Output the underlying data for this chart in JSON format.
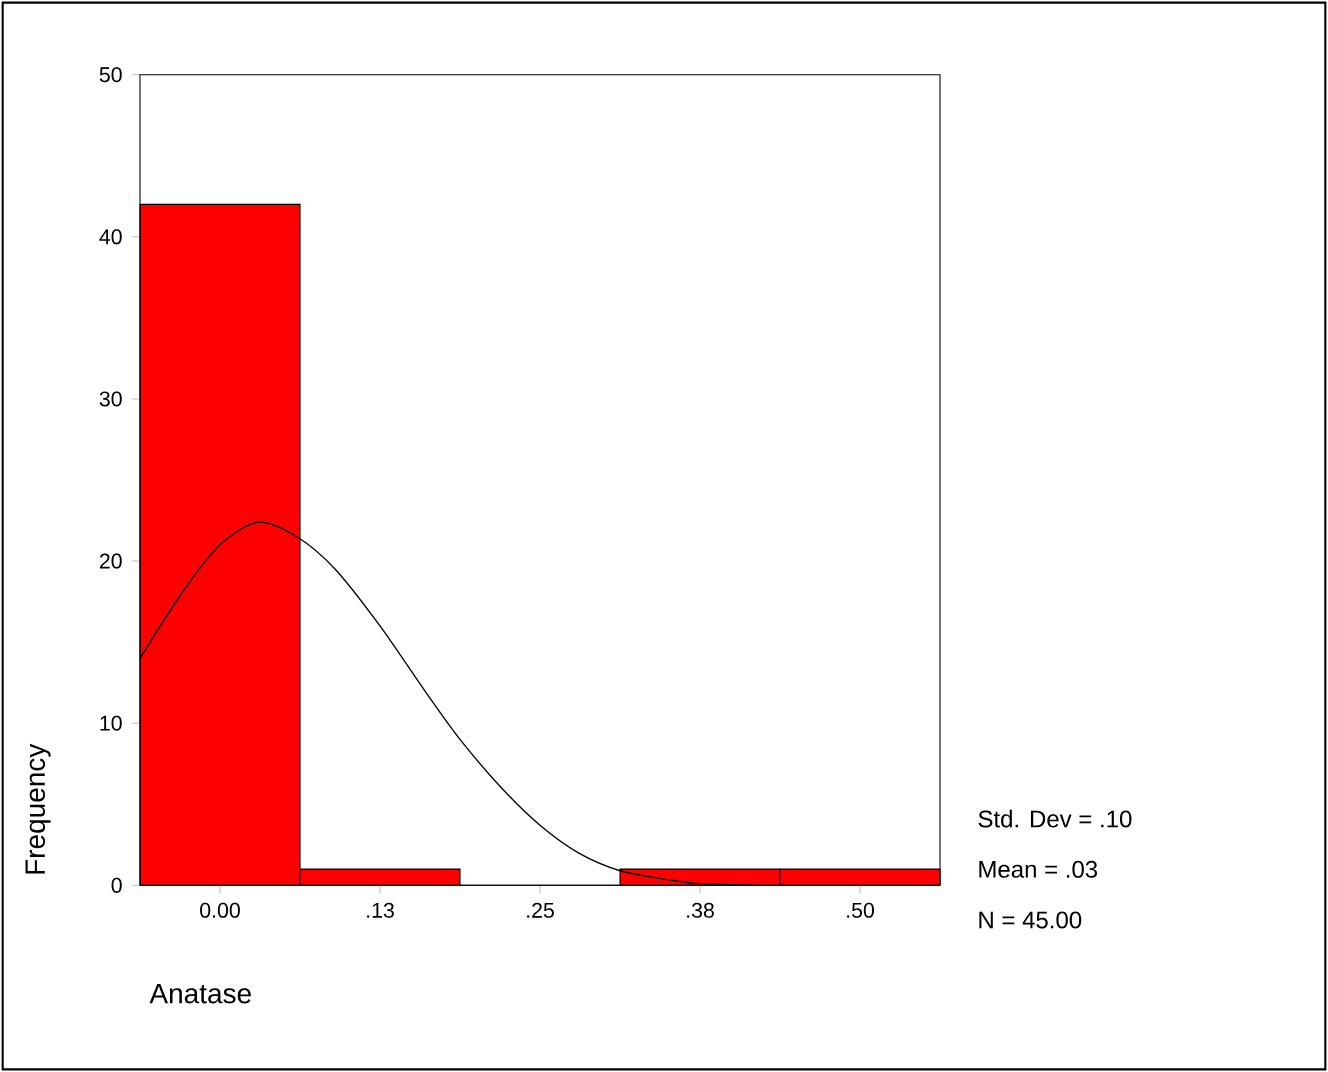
{
  "chart_data": {
    "type": "histogram",
    "xlabel": "Anatase",
    "ylabel": "Frequency",
    "bins": [
      -0.0625,
      0.0625,
      0.1875,
      0.3125,
      0.4375,
      0.5625
    ],
    "values": [
      42,
      1,
      0,
      1,
      1
    ],
    "color": "#ff0000",
    "series": [
      {
        "type": "line",
        "color": "#000000",
        "x": [
          -0.0625,
          -0.03,
          0,
          0.03,
          0.06,
          0.09,
          0.125,
          0.16,
          0.1875,
          0.22,
          0.25,
          0.28,
          0.3125,
          0.35,
          0.375,
          0.42
        ],
        "values": [
          14,
          18,
          21,
          22.4,
          21.5,
          19.5,
          16,
          12,
          9,
          6,
          3.7,
          2,
          0.9,
          0.35,
          0.1,
          0
        ]
      }
    ],
    "xlim": [
      -0.0625,
      0.5625
    ],
    "ylim": [
      0,
      50
    ],
    "xticks": [
      {
        "value": 0,
        "label": "0.00"
      },
      {
        "value": 0.125,
        "label": ".13"
      },
      {
        "value": 0.25,
        "label": ".25"
      },
      {
        "value": 0.375,
        "label": ".38"
      },
      {
        "value": 0.5,
        "label": ".50"
      }
    ],
    "yticks": [
      0,
      10,
      20,
      30,
      40,
      50
    ],
    "annotations": [
      "Std. Dev = .10",
      "Mean = .03",
      "N = 45.00"
    ]
  }
}
